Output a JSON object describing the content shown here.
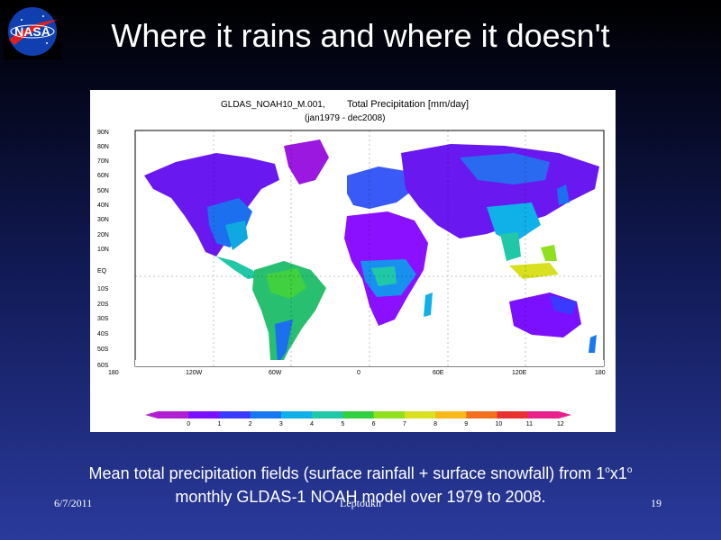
{
  "slide": {
    "title": "Where it rains and where it doesn't",
    "logo_text": "NASA"
  },
  "figure": {
    "title_id": "GLDAS_NOAH10_M.001,",
    "title_var": "Total Precipitation [mm/day]",
    "period": "(jan1979 - dec2008)",
    "lat_labels": [
      "90N",
      "80N",
      "70N",
      "60N",
      "50N",
      "40N",
      "30N",
      "20N",
      "10N",
      "EQ",
      "10S",
      "20S",
      "30S",
      "40S",
      "50S",
      "60S"
    ],
    "lon_labels": [
      "180",
      "120W",
      "60W",
      "0",
      "60E",
      "120E",
      "180"
    ],
    "colorbar_labels": [
      "0",
      "1",
      "2",
      "3",
      "4",
      "5",
      "6",
      "7",
      "8",
      "9",
      "10",
      "11",
      "12"
    ],
    "colorbar_colors": [
      "#b020d0",
      "#7a10ff",
      "#3a3aff",
      "#1878f0",
      "#10b0e8",
      "#20c8a8",
      "#30d040",
      "#90e020",
      "#d8e020",
      "#f8b818",
      "#f07020",
      "#e83030",
      "#e8208c"
    ]
  },
  "caption": {
    "line1_prefix": "Mean total precipitation fields (surface rainfall + surface snowfall) from 1",
    "sup1": "o",
    "mid": "x1",
    "sup2": "o",
    "line2": "monthly GLDAS-1 NOAH model over 1979 to 2008."
  },
  "footer": {
    "date": "6/7/2011",
    "author": "Leptoukh",
    "page": "19"
  }
}
